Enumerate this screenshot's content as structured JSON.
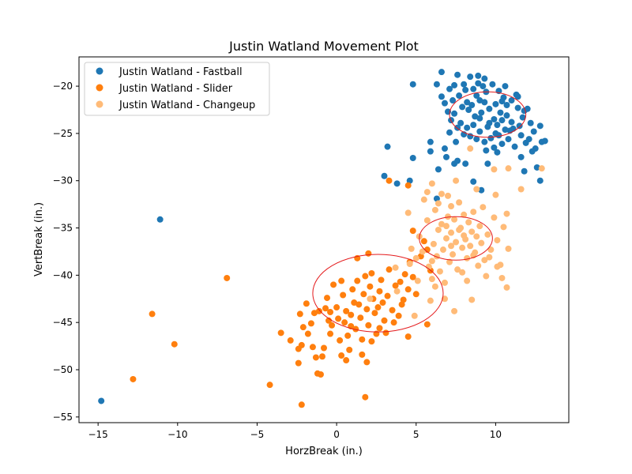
{
  "chart_data": {
    "type": "scatter",
    "title": "Justin Watland Movement Plot",
    "xlabel": "HorzBreak (in.)",
    "ylabel": "VertBreak (in.)",
    "xlim": [
      -16.2,
      14.6
    ],
    "ylim": [
      -55.6,
      -16.9
    ],
    "xticks": [
      -15,
      -10,
      -5,
      0,
      5,
      10
    ],
    "xtick_labels": [
      "−15",
      "−10",
      "−5",
      "0",
      "5",
      "10"
    ],
    "yticks": [
      -55,
      -50,
      -45,
      -40,
      -35,
      -30,
      -25,
      -20
    ],
    "ytick_labels": [
      "−55",
      "−50",
      "−45",
      "−40",
      "−35",
      "−30",
      "−25",
      "−20"
    ],
    "grid": false,
    "legend_position": "top-left",
    "series": [
      {
        "name": "Justin Watland - Fastball",
        "color": "#1f77b4",
        "ellipse": {
          "cx": 9.5,
          "cy": -23.0,
          "rx": 2.4,
          "ry": 2.4
        },
        "points": [
          [
            -14.8,
            -53.3
          ],
          [
            -11.1,
            -34.1
          ],
          [
            3.2,
            -26.4
          ],
          [
            4.8,
            -19.8
          ],
          [
            3.0,
            -29.5
          ],
          [
            3.8,
            -30.3
          ],
          [
            4.6,
            -30.0
          ],
          [
            4.8,
            -27.6
          ],
          [
            5.9,
            -25.9
          ],
          [
            5.9,
            -26.9
          ],
          [
            6.3,
            -31.9
          ],
          [
            6.4,
            -28.8
          ],
          [
            6.8,
            -26.6
          ],
          [
            6.9,
            -27.5
          ],
          [
            7.1,
            -24.9
          ],
          [
            7.4,
            -28.2
          ],
          [
            7.6,
            -27.9
          ],
          [
            8.1,
            -28.2
          ],
          [
            8.6,
            -30.1
          ],
          [
            9.1,
            -31.0
          ],
          [
            9.5,
            -28.2
          ],
          [
            10.1,
            -27.0
          ],
          [
            11.8,
            -29.0
          ],
          [
            12.6,
            -28.6
          ],
          [
            12.8,
            -30.0
          ],
          [
            12.9,
            -25.9
          ],
          [
            13.1,
            -25.8
          ],
          [
            12.5,
            -26.6
          ],
          [
            12.8,
            -24.2
          ],
          [
            6.3,
            -19.8
          ],
          [
            6.6,
            -18.5
          ],
          [
            7.6,
            -18.8
          ],
          [
            6.8,
            -21.8
          ],
          [
            7.2,
            -23.6
          ],
          [
            7.5,
            -25.9
          ],
          [
            12.3,
            -26.9
          ],
          [
            11.9,
            -26.0
          ],
          [
            11.6,
            -25.2
          ],
          [
            11.2,
            -26.4
          ],
          [
            10.9,
            -24.7
          ],
          [
            10.7,
            -22.0
          ],
          [
            10.4,
            -23.6
          ],
          [
            11.3,
            -20.9
          ],
          [
            11.8,
            -22.6
          ],
          [
            12.2,
            -23.9
          ],
          [
            8.9,
            -18.9
          ],
          [
            9.3,
            -19.2
          ],
          [
            8.4,
            -19.0
          ],
          [
            8.0,
            -19.8
          ],
          [
            7.7,
            -21.0
          ],
          [
            8.2,
            -21.7
          ],
          [
            8.6,
            -20.3
          ],
          [
            9.0,
            -21.5
          ],
          [
            9.4,
            -20.6
          ],
          [
            9.8,
            -19.8
          ],
          [
            10.2,
            -20.5
          ],
          [
            10.5,
            -21.2
          ],
          [
            10.0,
            -21.9
          ],
          [
            9.6,
            -22.4
          ],
          [
            9.1,
            -22.8
          ],
          [
            8.7,
            -23.2
          ],
          [
            8.3,
            -22.5
          ],
          [
            7.9,
            -22.2
          ],
          [
            7.4,
            -22.9
          ],
          [
            7.8,
            -23.9
          ],
          [
            8.2,
            -24.4
          ],
          [
            8.6,
            -24.1
          ],
          [
            9.0,
            -24.8
          ],
          [
            9.5,
            -24.3
          ],
          [
            9.9,
            -23.5
          ],
          [
            10.3,
            -22.8
          ],
          [
            10.7,
            -23.1
          ],
          [
            11.0,
            -23.8
          ],
          [
            10.6,
            -24.6
          ],
          [
            10.2,
            -25.2
          ],
          [
            9.7,
            -25.5
          ],
          [
            9.3,
            -25.9
          ],
          [
            8.8,
            -25.6
          ],
          [
            8.4,
            -25.3
          ],
          [
            8.0,
            -25.1
          ],
          [
            7.6,
            -24.4
          ],
          [
            7.3,
            -21.5
          ],
          [
            7.1,
            -20.3
          ],
          [
            8.1,
            -20.4
          ],
          [
            8.8,
            -21.0
          ],
          [
            9.2,
            -20.0
          ],
          [
            10.6,
            -20.0
          ],
          [
            11.0,
            -21.5
          ],
          [
            11.4,
            -22.3
          ],
          [
            11.7,
            -23.3
          ],
          [
            11.5,
            -24.2
          ],
          [
            11.1,
            -24.5
          ],
          [
            10.8,
            -25.6
          ],
          [
            10.4,
            -26.1
          ],
          [
            9.9,
            -26.5
          ],
          [
            11.6,
            -27.5
          ],
          [
            12.1,
            -25.6
          ],
          [
            12.4,
            -24.8
          ],
          [
            9.0,
            -23.4
          ],
          [
            9.6,
            -23.9
          ],
          [
            10.1,
            -24.1
          ],
          [
            8.5,
            -22.0
          ],
          [
            9.3,
            -21.7
          ],
          [
            10.4,
            -21.6
          ],
          [
            7.0,
            -22.7
          ],
          [
            6.6,
            -21.1
          ],
          [
            12.0,
            -22.4
          ],
          [
            11.4,
            -21.1
          ],
          [
            8.9,
            -19.7
          ],
          [
            7.4,
            -19.9
          ],
          [
            10.0,
            -25.0
          ],
          [
            9.4,
            -26.8
          ]
        ]
      },
      {
        "name": "Justin Watland - Slider",
        "color": "#ff7f0e",
        "ellipse": {
          "cx": 2.6,
          "cy": -41.9,
          "rx": 4.1,
          "ry": 4.1
        },
        "points": [
          [
            -12.8,
            -51.0
          ],
          [
            -11.6,
            -44.1
          ],
          [
            -10.2,
            -47.3
          ],
          [
            -6.9,
            -40.3
          ],
          [
            -4.2,
            -51.6
          ],
          [
            -2.2,
            -53.7
          ],
          [
            1.8,
            -52.9
          ],
          [
            -3.5,
            -46.1
          ],
          [
            -2.9,
            -46.9
          ],
          [
            -2.4,
            -49.3
          ],
          [
            -2.2,
            -47.4
          ],
          [
            -2.3,
            -44.1
          ],
          [
            -2.1,
            -45.5
          ],
          [
            -1.9,
            -43.0
          ],
          [
            -1.8,
            -46.2
          ],
          [
            -1.6,
            -45.1
          ],
          [
            -1.5,
            -47.6
          ],
          [
            -1.3,
            -48.7
          ],
          [
            -1.2,
            -50.4
          ],
          [
            -1.0,
            -50.5
          ],
          [
            -0.9,
            -48.6
          ],
          [
            -0.8,
            -47.7
          ],
          [
            -0.7,
            -43.5
          ],
          [
            -0.6,
            -42.4
          ],
          [
            -0.5,
            -44.8
          ],
          [
            -0.4,
            -46.2
          ],
          [
            -0.3,
            -45.3
          ],
          [
            -0.2,
            -41.0
          ],
          [
            0.0,
            -43.4
          ],
          [
            0.1,
            -44.6
          ],
          [
            0.2,
            -46.9
          ],
          [
            0.3,
            -48.5
          ],
          [
            0.4,
            -42.1
          ],
          [
            0.5,
            -45.0
          ],
          [
            0.6,
            -43.8
          ],
          [
            0.7,
            -46.4
          ],
          [
            0.8,
            -47.9
          ],
          [
            0.9,
            -44.2
          ],
          [
            1.0,
            -41.5
          ],
          [
            1.1,
            -42.9
          ],
          [
            1.2,
            -45.7
          ],
          [
            1.3,
            -40.6
          ],
          [
            1.4,
            -43.1
          ],
          [
            1.5,
            -44.5
          ],
          [
            1.6,
            -46.8
          ],
          [
            1.7,
            -42.0
          ],
          [
            1.8,
            -40.1
          ],
          [
            1.9,
            -43.6
          ],
          [
            2.0,
            -45.3
          ],
          [
            2.1,
            -41.2
          ],
          [
            2.2,
            -39.8
          ],
          [
            2.3,
            -42.5
          ],
          [
            2.4,
            -44.0
          ],
          [
            2.5,
            -46.2
          ],
          [
            2.6,
            -43.4
          ],
          [
            2.7,
            -41.7
          ],
          [
            2.8,
            -40.5
          ],
          [
            2.9,
            -42.9
          ],
          [
            3.0,
            -44.8
          ],
          [
            3.1,
            -46.1
          ],
          [
            3.2,
            -42.2
          ],
          [
            3.3,
            -39.4
          ],
          [
            3.5,
            -43.7
          ],
          [
            3.7,
            -41.1
          ],
          [
            3.9,
            -44.3
          ],
          [
            4.0,
            -40.7
          ],
          [
            4.2,
            -42.6
          ],
          [
            4.3,
            -39.9
          ],
          [
            4.5,
            -41.5
          ],
          [
            4.6,
            -38.6
          ],
          [
            4.8,
            -40.2
          ],
          [
            5.0,
            -42.0
          ],
          [
            5.3,
            -38.0
          ],
          [
            5.5,
            -36.4
          ],
          [
            5.7,
            -37.3
          ],
          [
            5.9,
            -39.5
          ],
          [
            4.5,
            -46.5
          ],
          [
            5.7,
            -45.2
          ],
          [
            4.8,
            -35.3
          ],
          [
            4.5,
            -30.5
          ],
          [
            3.3,
            -30.0
          ],
          [
            1.3,
            -38.2
          ],
          [
            2.0,
            -37.7
          ],
          [
            -1.1,
            -43.8
          ],
          [
            -2.4,
            -47.8
          ],
          [
            0.3,
            -40.6
          ],
          [
            0.9,
            -45.4
          ],
          [
            1.6,
            -48.4
          ],
          [
            2.2,
            -47.0
          ],
          [
            3.6,
            -45.0
          ],
          [
            4.1,
            -43.1
          ],
          [
            -0.4,
            -43.9
          ],
          [
            1.9,
            -49.2
          ],
          [
            -1.4,
            -44.0
          ],
          [
            0.6,
            -49.0
          ],
          [
            2.7,
            -45.6
          ]
        ]
      },
      {
        "name": "Justin Watland - Changeup",
        "color": "#ffbb78",
        "ellipse": {
          "cx": 7.5,
          "cy": -36.1,
          "rx": 2.3,
          "ry": 2.3
        },
        "points": [
          [
            2.1,
            -42.5
          ],
          [
            3.7,
            -39.2
          ],
          [
            4.6,
            -38.8
          ],
          [
            5.0,
            -38.2
          ],
          [
            4.5,
            -33.4
          ],
          [
            5.2,
            -35.9
          ],
          [
            5.4,
            -37.5
          ],
          [
            5.7,
            -34.2
          ],
          [
            5.8,
            -39.1
          ],
          [
            6.0,
            -40.4
          ],
          [
            6.1,
            -36.7
          ],
          [
            6.2,
            -33.1
          ],
          [
            6.3,
            -38.0
          ],
          [
            6.4,
            -35.2
          ],
          [
            6.5,
            -39.6
          ],
          [
            6.6,
            -34.6
          ],
          [
            6.7,
            -37.3
          ],
          [
            6.8,
            -40.8
          ],
          [
            6.9,
            -36.1
          ],
          [
            7.0,
            -33.8
          ],
          [
            7.1,
            -38.6
          ],
          [
            7.2,
            -35.5
          ],
          [
            7.3,
            -37.8
          ],
          [
            7.4,
            -34.1
          ],
          [
            7.5,
            -36.5
          ],
          [
            7.6,
            -39.4
          ],
          [
            7.7,
            -32.3
          ],
          [
            7.8,
            -35.0
          ],
          [
            7.9,
            -37.1
          ],
          [
            8.0,
            -33.6
          ],
          [
            8.1,
            -36.2
          ],
          [
            8.2,
            -38.2
          ],
          [
            8.3,
            -34.4
          ],
          [
            8.4,
            -36.9
          ],
          [
            8.5,
            -35.4
          ],
          [
            8.6,
            -33.3
          ],
          [
            8.7,
            -37.6
          ],
          [
            8.8,
            -35.9
          ],
          [
            8.9,
            -39.0
          ],
          [
            9.0,
            -34.8
          ],
          [
            9.1,
            -36.6
          ],
          [
            9.2,
            -32.8
          ],
          [
            9.3,
            -38.4
          ],
          [
            9.5,
            -35.7
          ],
          [
            9.7,
            -37.3
          ],
          [
            9.9,
            -33.9
          ],
          [
            10.1,
            -36.3
          ],
          [
            10.3,
            -38.9
          ],
          [
            10.5,
            -34.9
          ],
          [
            10.7,
            -33.5
          ],
          [
            10.8,
            -37.2
          ],
          [
            10.7,
            -41.3
          ],
          [
            10.1,
            -39.1
          ],
          [
            9.4,
            -40.1
          ],
          [
            8.5,
            -42.6
          ],
          [
            7.4,
            -43.8
          ],
          [
            6.8,
            -42.5
          ],
          [
            6.2,
            -41.2
          ],
          [
            5.9,
            -42.7
          ],
          [
            4.9,
            -44.3
          ],
          [
            9.9,
            -28.8
          ],
          [
            10.8,
            -28.7
          ],
          [
            12.9,
            -28.7
          ],
          [
            8.4,
            -26.6
          ],
          [
            5.7,
            -31.2
          ],
          [
            6.6,
            -31.4
          ],
          [
            7.2,
            -32.7
          ],
          [
            7.5,
            -30.0
          ],
          [
            8.8,
            -30.9
          ],
          [
            10.0,
            -31.5
          ],
          [
            11.6,
            -30.9
          ],
          [
            6.0,
            -30.3
          ],
          [
            7.0,
            -31.6
          ],
          [
            5.5,
            -32.0
          ],
          [
            6.4,
            -32.4
          ],
          [
            4.7,
            -37.2
          ],
          [
            5.1,
            -40.6
          ],
          [
            6.0,
            -38.5
          ],
          [
            8.2,
            -40.6
          ],
          [
            9.6,
            -38.1
          ],
          [
            10.4,
            -40.3
          ],
          [
            3.8,
            -41.7
          ],
          [
            7.7,
            -35.2
          ],
          [
            7.2,
            -36.9
          ],
          [
            8.6,
            -37.9
          ],
          [
            6.9,
            -34.8
          ],
          [
            7.9,
            -39.7
          ],
          [
            8.0,
            -35.8
          ]
        ]
      }
    ]
  }
}
